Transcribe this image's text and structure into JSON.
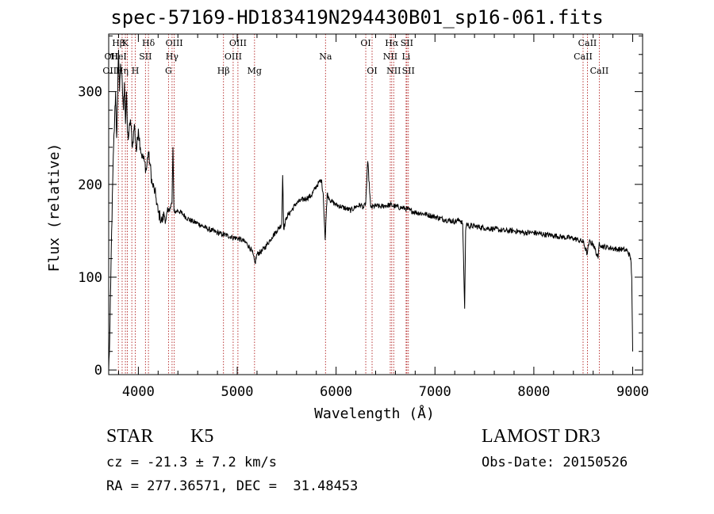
{
  "title": "spec-57169-HD183419N294430B01_sp16-061.fits",
  "info": {
    "class": "STAR",
    "subclass": "K5",
    "survey": "LAMOST DR3",
    "cz": "cz = -21.3 ± 7.2 km/s",
    "obs_date": "Obs-Date: 20150526",
    "radec": "RA = 277.36571, DEC =  31.48453"
  },
  "chart_data": {
    "type": "line",
    "title": "spec-57169-HD183419N294430B01_sp16-061.fits",
    "xlabel": "Wavelength (Å)",
    "ylabel": "Flux (relative)",
    "xlim": [
      3700,
      9100
    ],
    "ylim": [
      -5,
      362
    ],
    "xticks": [
      4000,
      5000,
      6000,
      7000,
      8000,
      9000
    ],
    "yticks": [
      0,
      100,
      200,
      300
    ],
    "grid": false,
    "series": [
      {
        "color": "#000000",
        "x": [
          3700,
          3710,
          3720,
          3730,
          3740,
          3750,
          3760,
          3770,
          3780,
          3790,
          3800,
          3810,
          3820,
          3830,
          3840,
          3850,
          3860,
          3870,
          3880,
          3890,
          3900,
          3920,
          3940,
          3960,
          3980,
          4000,
          4020,
          4040,
          4060,
          4080,
          4100,
          4120,
          4140,
          4160,
          4180,
          4200,
          4220,
          4240,
          4260,
          4280,
          4300,
          4320,
          4340,
          4350,
          4360,
          4380,
          4400,
          4450,
          4500,
          4550,
          4600,
          4650,
          4700,
          4750,
          4800,
          4850,
          4900,
          4950,
          5000,
          5050,
          5100,
          5150,
          5180,
          5200,
          5250,
          5300,
          5350,
          5400,
          5450,
          5460,
          5470,
          5500,
          5550,
          5600,
          5650,
          5700,
          5750,
          5800,
          5850,
          5870,
          5890,
          5900,
          5910,
          5930,
          5950,
          6000,
          6050,
          6100,
          6150,
          6200,
          6250,
          6280,
          6300,
          6320,
          6350,
          6400,
          6450,
          6500,
          6550,
          6600,
          6650,
          6700,
          6750,
          6800,
          6900,
          7000,
          7100,
          7200,
          7250,
          7280,
          7300,
          7310,
          7320,
          7340,
          7400,
          7500,
          7600,
          7700,
          7800,
          7900,
          8000,
          8100,
          8200,
          8300,
          8400,
          8450,
          8500,
          8540,
          8560,
          8600,
          8650,
          8662,
          8680,
          8700,
          8750,
          8800,
          8850,
          8900,
          8950,
          8980,
          8990,
          9000
        ],
        "y": [
          0,
          30,
          90,
          150,
          200,
          240,
          270,
          300,
          250,
          290,
          345,
          300,
          330,
          320,
          300,
          280,
          310,
          265,
          300,
          255,
          250,
          270,
          240,
          265,
          235,
          260,
          240,
          230,
          225,
          215,
          235,
          220,
          200,
          195,
          185,
          170,
          165,
          160,
          168,
          162,
          170,
          175,
          180,
          240,
          172,
          170,
          172,
          168,
          163,
          160,
          158,
          155,
          152,
          150,
          148,
          146,
          145,
          143,
          142,
          140,
          136,
          128,
          115,
          125,
          128,
          135,
          143,
          150,
          157,
          210,
          152,
          165,
          172,
          180,
          183,
          185,
          188,
          198,
          205,
          190,
          140,
          168,
          190,
          185,
          182,
          178,
          176,
          174,
          172,
          176,
          178,
          175,
          180,
          225,
          175,
          177,
          176,
          177,
          178,
          176,
          175,
          174,
          172,
          170,
          168,
          165,
          162,
          160,
          162,
          158,
          66,
          150,
          158,
          155,
          155,
          153,
          152,
          150,
          150,
          148,
          148,
          146,
          145,
          143,
          142,
          140,
          138,
          125,
          138,
          136,
          120,
          138,
          134,
          133,
          132,
          131,
          130,
          130,
          128,
          120,
          100,
          20
        ]
      }
    ],
    "lines": [
      {
        "x": 3798,
        "label": "Hβ",
        "row": 1
      },
      {
        "x": 3836,
        "label": "",
        "row": 0
      },
      {
        "x": 3869,
        "label": "K",
        "row": 1
      },
      {
        "x": 3889,
        "label": "",
        "row": 0
      },
      {
        "x": 3934,
        "label": "",
        "row": 0
      },
      {
        "x": 3969,
        "label": "H",
        "row": 3
      },
      {
        "x": 4072,
        "label": "SII",
        "row": 2
      },
      {
        "x": 4102,
        "label": "Hδ",
        "row": 1
      },
      {
        "x": 4305,
        "label": "G",
        "row": 3
      },
      {
        "x": 4341,
        "label": "Hγ",
        "row": 2
      },
      {
        "x": 4363,
        "label": "OIII",
        "row": 1
      },
      {
        "x": 4861,
        "label": "Hβ",
        "row": 3
      },
      {
        "x": 4959,
        "label": "OIII",
        "row": 2
      },
      {
        "x": 5007,
        "label": "OIII",
        "row": 1
      },
      {
        "x": 5175,
        "label": "Mg",
        "row": 3
      },
      {
        "x": 5893,
        "label": "Na",
        "row": 2
      },
      {
        "x": 6300,
        "label": "OI",
        "row": 1
      },
      {
        "x": 6364,
        "label": "OI",
        "row": 3
      },
      {
        "x": 6548,
        "label": "NII",
        "row": 2
      },
      {
        "x": 6563,
        "label": "Hα",
        "row": 1
      },
      {
        "x": 6583,
        "label": "NII",
        "row": 3
      },
      {
        "x": 6708,
        "label": "Li",
        "row": 2
      },
      {
        "x": 6716,
        "label": "SII",
        "row": 1
      },
      {
        "x": 6731,
        "label": "SII",
        "row": 3
      },
      {
        "x": 8498,
        "label": "CaII",
        "row": 2
      },
      {
        "x": 8542,
        "label": "CaII",
        "row": 1
      },
      {
        "x": 8662,
        "label": "CaII",
        "row": 3
      }
    ],
    "extra_labels": [
      {
        "text": "OII",
        "row": 2,
        "at": 3727
      },
      {
        "text": "HeI",
        "row": 2,
        "at": 3800
      },
      {
        "text": "OIII",
        "row": 3,
        "at": 3727
      },
      {
        "text": "Hη",
        "row": 3,
        "at": 3836
      }
    ]
  }
}
